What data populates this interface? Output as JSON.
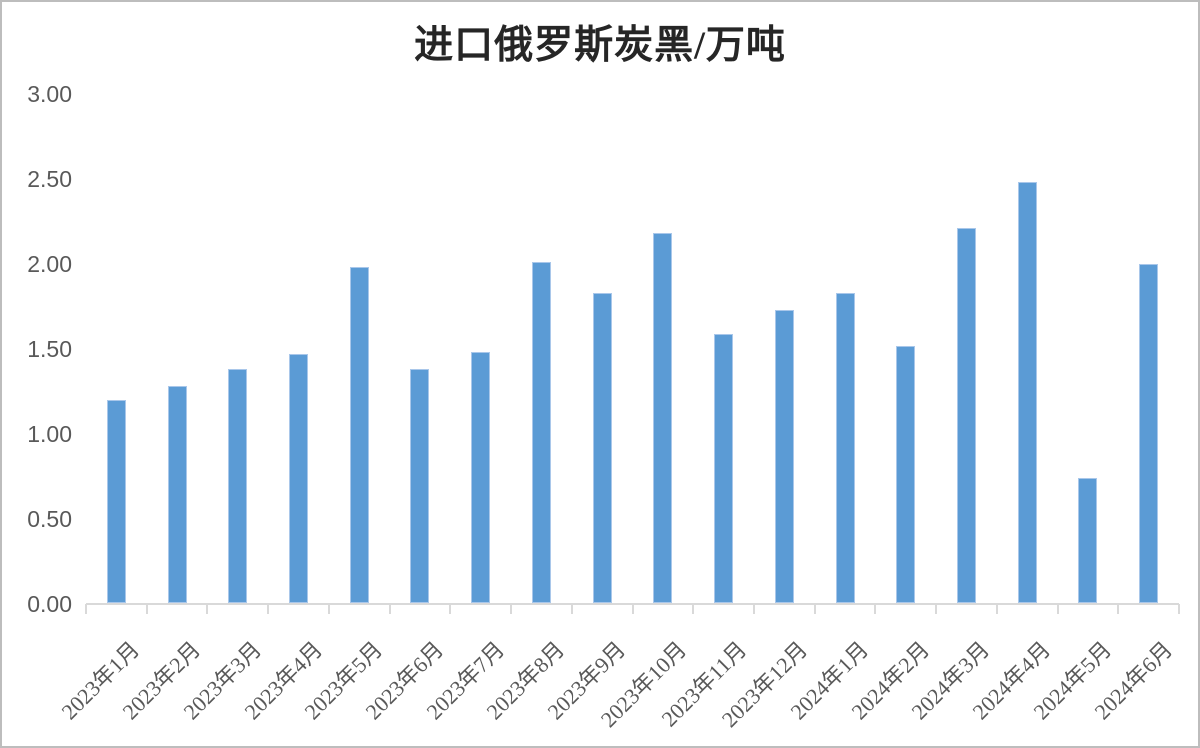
{
  "chart_data": {
    "type": "bar",
    "title": "进口俄罗斯炭黑/万吨",
    "categories": [
      "2023年1月",
      "2023年2月",
      "2023年3月",
      "2023年4月",
      "2023年5月",
      "2023年6月",
      "2023年7月",
      "2023年8月",
      "2023年9月",
      "2023年10月",
      "2023年11月",
      "2023年12月",
      "2024年1月",
      "2024年2月",
      "2024年3月",
      "2024年4月",
      "2024年5月",
      "2024年6月"
    ],
    "values": [
      1.2,
      1.28,
      1.38,
      1.47,
      1.98,
      1.38,
      1.48,
      2.01,
      1.83,
      2.18,
      1.59,
      1.73,
      1.83,
      1.52,
      2.21,
      2.48,
      0.74,
      2.0
    ],
    "xlabel": "",
    "ylabel": "",
    "ylim": [
      0,
      3
    ],
    "ytick_step": 0.5,
    "ytick_labels": [
      "0.00",
      "0.50",
      "1.00",
      "1.50",
      "2.00",
      "2.50",
      "3.00"
    ],
    "x_label_rotation": -45,
    "grid": false,
    "legend_position": "none",
    "colors": {
      "bar_fill": "#5B9BD5",
      "bar_edge": "#A9C7EA",
      "axis_line": "#D9D9D9",
      "tick_label": "#595959",
      "title_text": "#262626",
      "frame_border": "#BDBDBD",
      "background": "#FFFFFF"
    }
  }
}
